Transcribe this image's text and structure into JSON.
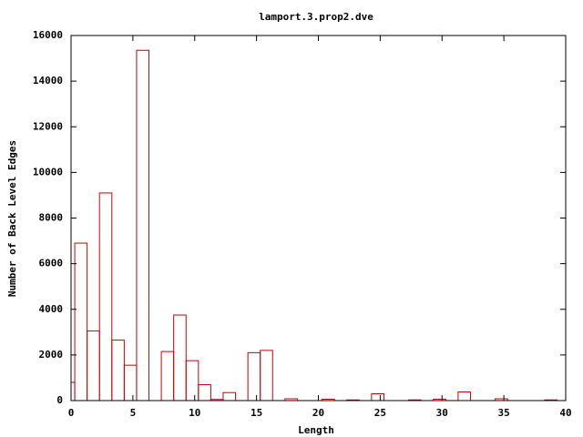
{
  "chart_data": {
    "type": "histogram",
    "title": "lamport.3.prop2.dve",
    "x_label": "Length",
    "y_label": "Number of Back Level Edges",
    "bins": [
      -0.7,
      0.3,
      1.3,
      2.3,
      3.3,
      4.3,
      5.3,
      6.3,
      7.3,
      8.3,
      9.3,
      10.3,
      11.3,
      12.3,
      13.3,
      14.3,
      15.3,
      16.3,
      17.3,
      18.3,
      19.3,
      20.3,
      21.3,
      22.3,
      23.3,
      24.3,
      25.3,
      26.3,
      27.3,
      28.3,
      29.3,
      30.3,
      31.3,
      32.3,
      33.3,
      34.3,
      35.3,
      36.3,
      37.3,
      38.3,
      39.3
    ],
    "values": [
      800,
      6900,
      3050,
      9100,
      2650,
      1550,
      15350,
      0,
      2150,
      3750,
      1750,
      700,
      50,
      350,
      0,
      2100,
      2200,
      0,
      80,
      0,
      0,
      60,
      0,
      30,
      0,
      300,
      0,
      0,
      30,
      0,
      60,
      0,
      380,
      0,
      0,
      80,
      0,
      0,
      0,
      30
    ],
    "color": "#cc0000",
    "xlim": [
      0,
      40
    ],
    "xticks": [
      0,
      5,
      10,
      15,
      20,
      25,
      30,
      35,
      40
    ],
    "ylim": [
      0,
      16000
    ],
    "yticks": [
      0,
      2000,
      4000,
      6000,
      8000,
      10000,
      12000,
      14000,
      16000
    ]
  }
}
